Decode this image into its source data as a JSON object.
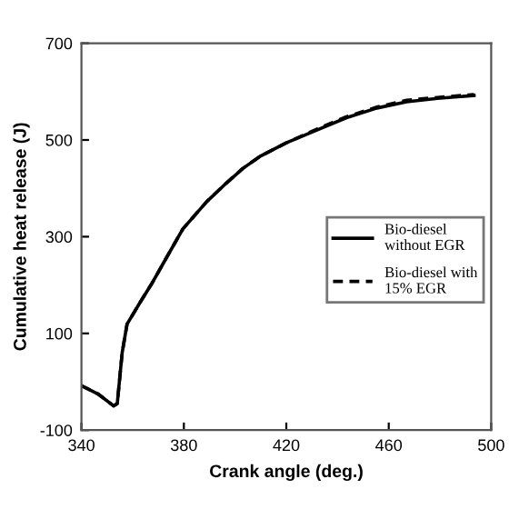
{
  "chart_data": {
    "type": "line",
    "xlabel": "Crank angle (deg.)",
    "ylabel": "Cumulative heat release (J)",
    "xlim": [
      340,
      500
    ],
    "ylim": [
      -100,
      700
    ],
    "xticks": [
      340,
      380,
      420,
      460,
      500
    ],
    "yticks": [
      -100,
      100,
      300,
      500,
      700
    ],
    "grid": false,
    "legend": "right",
    "marker": "none",
    "series": [
      {
        "name": "Bio-diesel\nwithout EGR",
        "color": "#000000",
        "line_style": "solid",
        "x": [
          340,
          346.4,
          352.6,
          354,
          355.9,
          357.8,
          363,
          367.7,
          372.5,
          379.6,
          389,
          396,
          403,
          410,
          420,
          431.7,
          443.5,
          455.4,
          467,
          479,
          493.3
        ],
        "values": [
          -8,
          -25,
          -50,
          -45,
          60,
          119,
          165,
          205,
          250,
          316,
          373,
          408,
          441,
          467,
          494,
          520,
          546,
          566,
          579,
          586,
          592
        ]
      },
      {
        "name": "Bio-diesel with\n15% EGR",
        "color": "#000000",
        "line_style": "dashed",
        "x": [
          340,
          346.4,
          352.6,
          354,
          355.9,
          357.8,
          363,
          367.7,
          372.5,
          379.6,
          389,
          396,
          403,
          410,
          420,
          431.7,
          443.5,
          455.4,
          467,
          479,
          493.3
        ],
        "values": [
          -8,
          -25,
          -50,
          -45,
          60,
          119,
          165,
          205,
          250,
          316,
          373,
          408,
          441,
          467,
          494,
          522,
          548,
          568,
          582,
          588,
          594
        ]
      }
    ]
  }
}
